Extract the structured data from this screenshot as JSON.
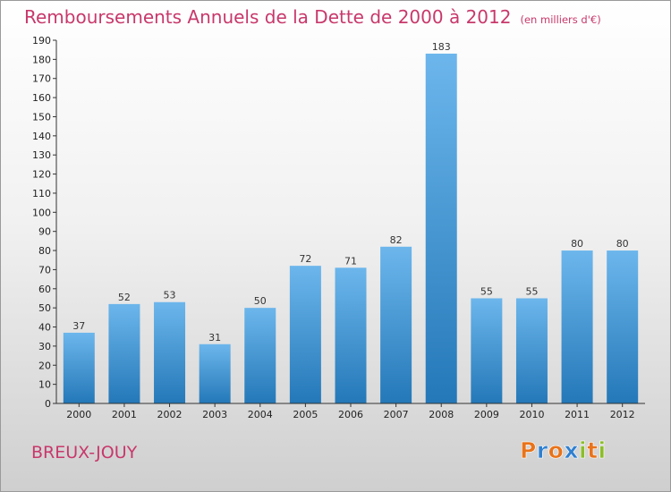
{
  "chart_data": {
    "type": "bar",
    "title": "Remboursements Annuels de la Dette de 2000 à 2012",
    "unit_note": "(en milliers d'€)",
    "xlabel": "",
    "ylabel": "",
    "categories": [
      "2000",
      "2001",
      "2002",
      "2003",
      "2004",
      "2005",
      "2006",
      "2007",
      "2008",
      "2009",
      "2010",
      "2011",
      "2012"
    ],
    "values": [
      37,
      52,
      53,
      31,
      50,
      72,
      71,
      82,
      183,
      55,
      55,
      80,
      80
    ],
    "data_labels": [
      "37",
      "52",
      "53",
      "31",
      "50",
      "72",
      "71",
      "82",
      "183",
      "55",
      "55",
      "80",
      "80"
    ],
    "ylim": [
      0,
      190
    ],
    "yticks": [
      0,
      10,
      20,
      30,
      40,
      50,
      60,
      70,
      80,
      90,
      100,
      110,
      120,
      130,
      140,
      150,
      160,
      170,
      180,
      190
    ],
    "grid": false,
    "legend": "none",
    "colors": {
      "bar_top": "#6cb6ec",
      "bar_bottom": "#2478b8",
      "title": "#c8386b"
    }
  },
  "commune": "BREUX-JOUY",
  "brand": {
    "letters": [
      {
        "char": "P",
        "color": "#e8731a"
      },
      {
        "char": "r",
        "color": "#2f7fd0"
      },
      {
        "char": "o",
        "color": "#e8731a"
      },
      {
        "char": "x",
        "color": "#2f7fd0"
      },
      {
        "char": "i",
        "color": "#8bbd2a"
      },
      {
        "char": "t",
        "color": "#e8731a"
      },
      {
        "char": "i",
        "color": "#8bbd2a"
      }
    ]
  }
}
